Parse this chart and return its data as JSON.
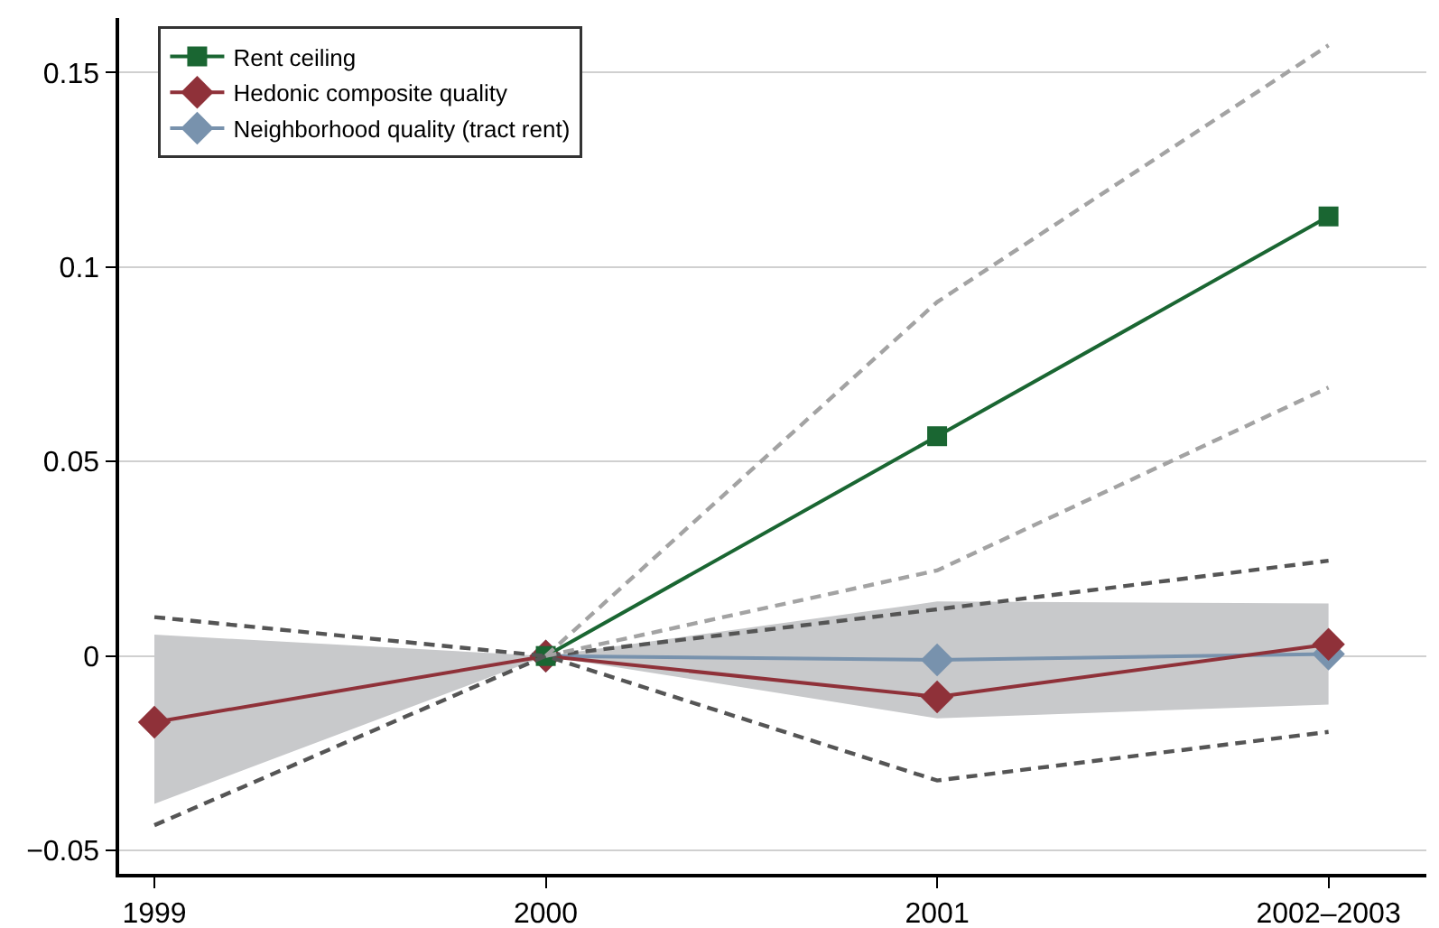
{
  "chart_data": {
    "type": "line",
    "categories": [
      "1999",
      "2000",
      "2001",
      "2002–2003"
    ],
    "ylim": [
      -0.056,
      0.164
    ],
    "yticks": [
      {
        "value": -0.05,
        "label": "−0.05"
      },
      0,
      0.05,
      0.1,
      0.15
    ],
    "grid": "y",
    "legend": "top left",
    "series": [
      {
        "color": "#a3a3a3",
        "line_style": "dashed",
        "marker": "none",
        "values": [
          null,
          0,
          0.091,
          0.157
        ]
      },
      {
        "color": "#a3a3a3",
        "line_style": "dashed",
        "marker": "none",
        "values": [
          null,
          0,
          0.022,
          0.069
        ]
      },
      {
        "color": "#555555",
        "line_style": "dashed",
        "marker": "none",
        "values": [
          0.01,
          0,
          0.012,
          0.0245
        ]
      },
      {
        "color": "#555555",
        "line_style": "dashed",
        "marker": "none",
        "values": [
          -0.0435,
          0,
          -0.032,
          -0.0195
        ]
      },
      {
        "name": "Rent ceiling",
        "color": "#1a6632",
        "line_style": "solid",
        "marker": "square",
        "values": [
          null,
          0,
          0.0565,
          0.113
        ]
      },
      {
        "name": "Hedonic composite quality",
        "color": "#8f3139",
        "line_style": "solid",
        "marker": "diamond",
        "values": [
          -0.017,
          0,
          -0.0105,
          0.003
        ]
      },
      {
        "name": "Neighborhood quality (tract rent)",
        "color": "#7892ad",
        "line_style": "solid",
        "marker": "diamond",
        "values": [
          null,
          0,
          -0.001,
          0.0005
        ],
        "lower": [
          -0.038,
          0,
          -0.016,
          -0.0125
        ],
        "upper": [
          0.0055,
          0,
          0.014,
          0.0135
        ]
      }
    ]
  }
}
